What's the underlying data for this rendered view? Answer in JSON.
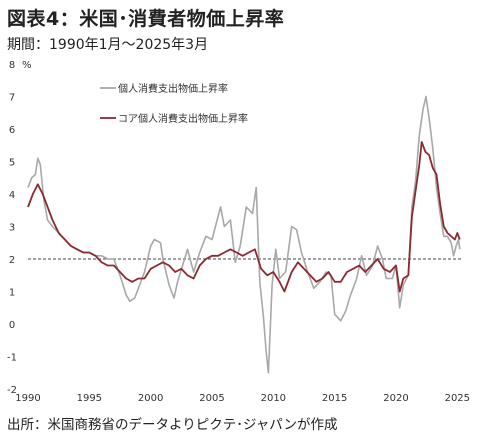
{
  "header": {
    "title": "図表4：米国･消費者物価上昇率",
    "subtitle": "期間：1990年1月～2025年3月"
  },
  "footer": {
    "source": "出所：米国商務省のデータよりピクテ･ジャパンが作成"
  },
  "chart_data": {
    "type": "line",
    "ylabel": "%",
    "ylim": [
      -2,
      8
    ],
    "xlim": [
      1990.0,
      2025.3
    ],
    "y_ticks": [
      "-2",
      "-1",
      "0",
      "1",
      "2",
      "3",
      "4",
      "5",
      "6",
      "7",
      "8"
    ],
    "x_ticks": [
      "1990",
      "1995",
      "2000",
      "2005",
      "2010",
      "2015",
      "2020",
      "2025"
    ],
    "reference_line": 2,
    "grid": false,
    "legend_position": "top-left",
    "series": [
      {
        "name": "個人消費支出物価上昇率",
        "color": "#a8a8a8",
        "points": [
          [
            1990.0,
            4.2
          ],
          [
            1990.3,
            4.5
          ],
          [
            1990.6,
            4.6
          ],
          [
            1990.8,
            5.1
          ],
          [
            1991.0,
            4.9
          ],
          [
            1991.3,
            3.8
          ],
          [
            1991.6,
            3.2
          ],
          [
            1992.0,
            3.0
          ],
          [
            1992.5,
            2.8
          ],
          [
            1993.0,
            2.6
          ],
          [
            1993.5,
            2.4
          ],
          [
            1994.0,
            2.3
          ],
          [
            1994.5,
            2.2
          ],
          [
            1995.0,
            2.2
          ],
          [
            1995.5,
            2.1
          ],
          [
            1996.0,
            2.1
          ],
          [
            1996.5,
            2.0
          ],
          [
            1997.0,
            2.0
          ],
          [
            1997.5,
            1.5
          ],
          [
            1998.0,
            0.9
          ],
          [
            1998.3,
            0.7
          ],
          [
            1998.7,
            0.8
          ],
          [
            1999.0,
            1.1
          ],
          [
            1999.5,
            1.6
          ],
          [
            2000.0,
            2.4
          ],
          [
            2000.3,
            2.6
          ],
          [
            2000.8,
            2.5
          ],
          [
            2001.0,
            2.0
          ],
          [
            2001.5,
            1.2
          ],
          [
            2001.9,
            0.8
          ],
          [
            2002.2,
            1.3
          ],
          [
            2002.6,
            1.8
          ],
          [
            2003.0,
            2.3
          ],
          [
            2003.5,
            1.6
          ],
          [
            2004.0,
            2.2
          ],
          [
            2004.5,
            2.7
          ],
          [
            2005.0,
            2.6
          ],
          [
            2005.7,
            3.6
          ],
          [
            2006.0,
            3.0
          ],
          [
            2006.5,
            3.2
          ],
          [
            2006.9,
            1.9
          ],
          [
            2007.3,
            2.4
          ],
          [
            2007.8,
            3.6
          ],
          [
            2008.3,
            3.4
          ],
          [
            2008.6,
            4.2
          ],
          [
            2008.9,
            1.3
          ],
          [
            2009.2,
            0.2
          ],
          [
            2009.4,
            -0.8
          ],
          [
            2009.6,
            -1.5
          ],
          [
            2009.9,
            1.2
          ],
          [
            2010.2,
            2.3
          ],
          [
            2010.5,
            1.4
          ],
          [
            2011.0,
            1.6
          ],
          [
            2011.5,
            3.0
          ],
          [
            2011.9,
            2.9
          ],
          [
            2012.3,
            2.2
          ],
          [
            2012.8,
            1.6
          ],
          [
            2013.3,
            1.1
          ],
          [
            2013.8,
            1.3
          ],
          [
            2014.3,
            1.6
          ],
          [
            2014.7,
            1.5
          ],
          [
            2015.0,
            0.3
          ],
          [
            2015.5,
            0.1
          ],
          [
            2015.9,
            0.4
          ],
          [
            2016.3,
            0.9
          ],
          [
            2016.8,
            1.4
          ],
          [
            2017.2,
            2.1
          ],
          [
            2017.6,
            1.5
          ],
          [
            2018.1,
            1.8
          ],
          [
            2018.5,
            2.4
          ],
          [
            2018.9,
            2.0
          ],
          [
            2019.2,
            1.4
          ],
          [
            2019.7,
            1.4
          ],
          [
            2020.0,
            1.8
          ],
          [
            2020.3,
            0.5
          ],
          [
            2020.6,
            1.2
          ],
          [
            2021.0,
            1.5
          ],
          [
            2021.3,
            3.6
          ],
          [
            2021.6,
            4.4
          ],
          [
            2021.9,
            5.8
          ],
          [
            2022.2,
            6.6
          ],
          [
            2022.45,
            7.0
          ],
          [
            2022.75,
            6.2
          ],
          [
            2023.0,
            5.4
          ],
          [
            2023.3,
            4.2
          ],
          [
            2023.6,
            3.4
          ],
          [
            2023.9,
            2.7
          ],
          [
            2024.2,
            2.7
          ],
          [
            2024.5,
            2.5
          ],
          [
            2024.7,
            2.1
          ],
          [
            2024.9,
            2.4
          ],
          [
            2025.1,
            2.6
          ],
          [
            2025.2,
            2.3
          ]
        ]
      },
      {
        "name": "コア個人消費支出物価上昇率",
        "color": "#8b2a32",
        "points": [
          [
            1990.0,
            3.6
          ],
          [
            1990.4,
            4.0
          ],
          [
            1990.8,
            4.3
          ],
          [
            1991.2,
            4.0
          ],
          [
            1991.6,
            3.6
          ],
          [
            1992.0,
            3.2
          ],
          [
            1992.5,
            2.8
          ],
          [
            1993.0,
            2.6
          ],
          [
            1993.5,
            2.4
          ],
          [
            1994.0,
            2.3
          ],
          [
            1994.5,
            2.2
          ],
          [
            1995.0,
            2.2
          ],
          [
            1995.5,
            2.1
          ],
          [
            1996.0,
            1.9
          ],
          [
            1996.5,
            1.8
          ],
          [
            1997.0,
            1.8
          ],
          [
            1997.5,
            1.6
          ],
          [
            1998.0,
            1.4
          ],
          [
            1998.5,
            1.3
          ],
          [
            1999.0,
            1.4
          ],
          [
            1999.5,
            1.4
          ],
          [
            2000.0,
            1.7
          ],
          [
            2000.5,
            1.8
          ],
          [
            2001.0,
            1.9
          ],
          [
            2001.5,
            1.8
          ],
          [
            2002.0,
            1.6
          ],
          [
            2002.5,
            1.7
          ],
          [
            2003.0,
            1.5
          ],
          [
            2003.5,
            1.4
          ],
          [
            2004.0,
            1.8
          ],
          [
            2004.5,
            2.0
          ],
          [
            2005.0,
            2.1
          ],
          [
            2005.5,
            2.1
          ],
          [
            2006.0,
            2.2
          ],
          [
            2006.5,
            2.3
          ],
          [
            2007.0,
            2.2
          ],
          [
            2007.5,
            2.1
          ],
          [
            2008.0,
            2.2
          ],
          [
            2008.5,
            2.3
          ],
          [
            2009.0,
            1.7
          ],
          [
            2009.5,
            1.5
          ],
          [
            2010.0,
            1.6
          ],
          [
            2010.5,
            1.3
          ],
          [
            2010.9,
            1.0
          ],
          [
            2011.5,
            1.6
          ],
          [
            2012.0,
            1.9
          ],
          [
            2012.5,
            1.7
          ],
          [
            2013.0,
            1.5
          ],
          [
            2013.5,
            1.3
          ],
          [
            2014.0,
            1.4
          ],
          [
            2014.5,
            1.6
          ],
          [
            2015.0,
            1.3
          ],
          [
            2015.5,
            1.3
          ],
          [
            2016.0,
            1.6
          ],
          [
            2016.5,
            1.7
          ],
          [
            2017.0,
            1.8
          ],
          [
            2017.5,
            1.6
          ],
          [
            2018.0,
            1.8
          ],
          [
            2018.5,
            2.0
          ],
          [
            2019.0,
            1.7
          ],
          [
            2019.5,
            1.6
          ],
          [
            2020.0,
            1.8
          ],
          [
            2020.3,
            1.0
          ],
          [
            2020.6,
            1.4
          ],
          [
            2021.0,
            1.5
          ],
          [
            2021.3,
            3.3
          ],
          [
            2021.6,
            4.1
          ],
          [
            2021.9,
            4.9
          ],
          [
            2022.1,
            5.6
          ],
          [
            2022.4,
            5.3
          ],
          [
            2022.7,
            5.2
          ],
          [
            2023.0,
            4.8
          ],
          [
            2023.3,
            4.6
          ],
          [
            2023.6,
            3.7
          ],
          [
            2023.9,
            3.0
          ],
          [
            2024.2,
            2.8
          ],
          [
            2024.5,
            2.7
          ],
          [
            2024.8,
            2.6
          ],
          [
            2025.0,
            2.8
          ],
          [
            2025.2,
            2.6
          ]
        ]
      }
    ]
  }
}
